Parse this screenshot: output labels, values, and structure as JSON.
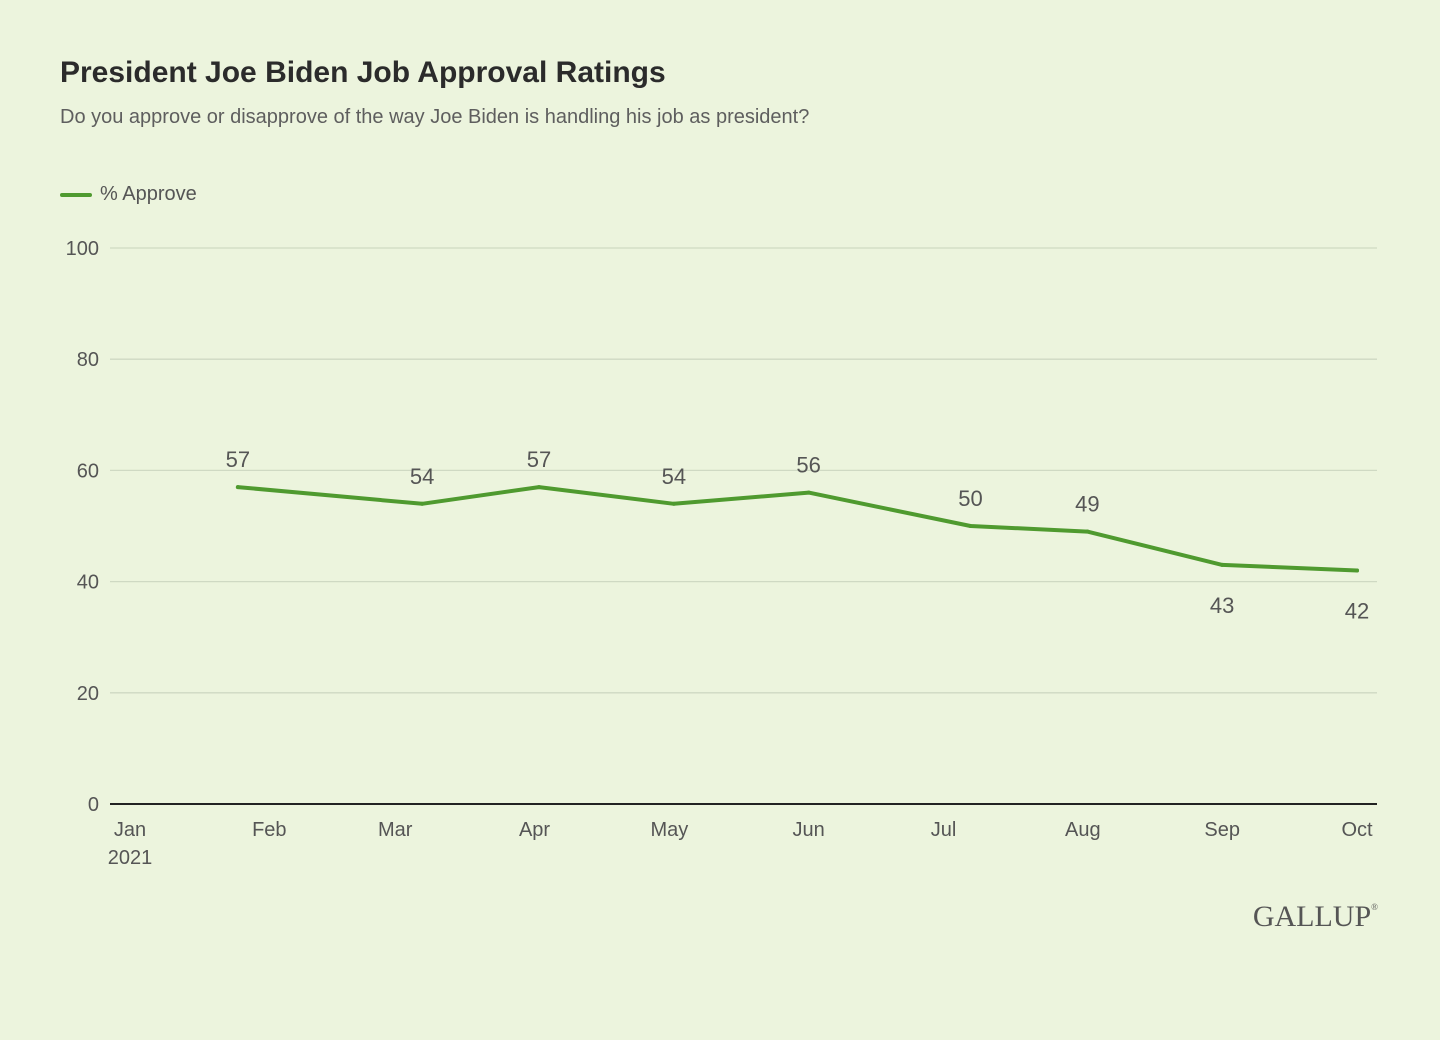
{
  "title": "President Joe Biden Job Approval Ratings",
  "subtitle": "Do you approve or disapprove of the way Joe Biden is handling his job as president?",
  "brand": "GALLUP",
  "colors": {
    "line": "#4f9a2f",
    "grid": "#cfd9c3",
    "axis": "#222222",
    "background": "#ecf4dd"
  },
  "chart_data": {
    "type": "line",
    "title": "President Joe Biden Job Approval Ratings",
    "subtitle": "Do you approve or disapprove of the way Joe Biden is handling his job as president?",
    "xlabel": "",
    "ylabel": "",
    "ylim": [
      0,
      100
    ],
    "yticks": [
      0,
      20,
      40,
      60,
      80,
      100
    ],
    "x_axis_ticks": [
      {
        "label": "Jan",
        "sublabel": "2021",
        "date": "2021-01-01"
      },
      {
        "label": "Feb",
        "date": "2021-02-01"
      },
      {
        "label": "Mar",
        "date": "2021-03-01"
      },
      {
        "label": "Apr",
        "date": "2021-04-01"
      },
      {
        "label": "May",
        "date": "2021-05-01"
      },
      {
        "label": "Jun",
        "date": "2021-06-01"
      },
      {
        "label": "Jul",
        "date": "2021-07-01"
      },
      {
        "label": "Aug",
        "date": "2021-08-01"
      },
      {
        "label": "Sep",
        "date": "2021-09-01"
      },
      {
        "label": "Oct",
        "date": "2021-10-01"
      }
    ],
    "legend_position": "top-left",
    "grid": true,
    "series": [
      {
        "name": "% Approve",
        "points": [
          {
            "date": "2021-01-25",
            "value": 57,
            "label_position": "above"
          },
          {
            "date": "2021-03-07",
            "value": 54,
            "label_position": "above"
          },
          {
            "date": "2021-04-02",
            "value": 57,
            "label_position": "above"
          },
          {
            "date": "2021-05-02",
            "value": 54,
            "label_position": "above"
          },
          {
            "date": "2021-06-01",
            "value": 56,
            "label_position": "above"
          },
          {
            "date": "2021-07-07",
            "value": 50,
            "label_position": "above"
          },
          {
            "date": "2021-08-02",
            "value": 49,
            "label_position": "above"
          },
          {
            "date": "2021-09-01",
            "value": 43,
            "label_position": "below"
          },
          {
            "date": "2021-10-01",
            "value": 42,
            "label_position": "below"
          }
        ]
      }
    ]
  }
}
